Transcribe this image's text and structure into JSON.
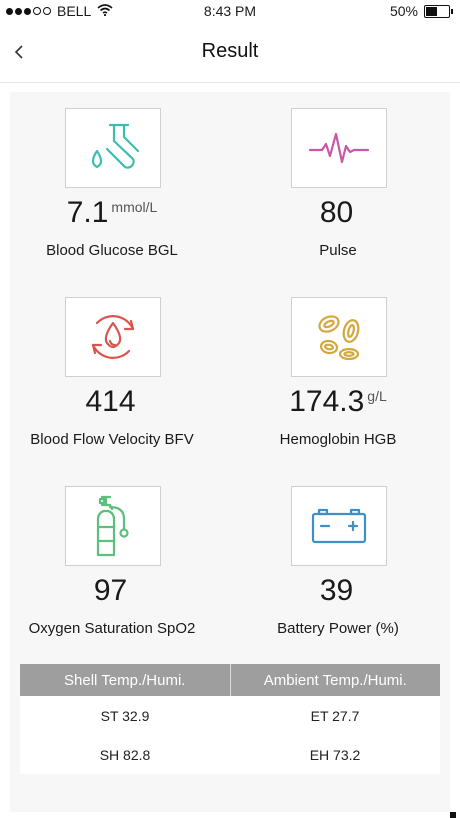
{
  "status_bar": {
    "carrier": "BELL",
    "time": "8:43 PM",
    "battery_percent": "50%",
    "battery_level": 0.5
  },
  "nav": {
    "title": "Result"
  },
  "metrics": [
    {
      "value": "7.1",
      "unit": "mmol/L",
      "label": "Blood Glucose BGL",
      "icon": "test-tube-drop-icon",
      "color": "#3dbcaf"
    },
    {
      "value": "80",
      "unit": "",
      "label": "Pulse",
      "icon": "pulse-wave-icon",
      "color": "#c857a8"
    },
    {
      "value": "414",
      "unit": "",
      "label": "Blood Flow Velocity BFV",
      "icon": "blood-drop-cycle-icon",
      "color": "#d9554d"
    },
    {
      "value": "174.3",
      "unit": "g/L",
      "label": "Hemoglobin HGB",
      "icon": "blood-cells-icon",
      "color": "#d4a83d"
    },
    {
      "value": "97",
      "unit": "",
      "label": "Oxygen Saturation SpO2",
      "icon": "oxygen-tank-icon",
      "color": "#5cbf7a"
    },
    {
      "value": "39",
      "unit": "",
      "label": "Battery Power (%)",
      "icon": "car-battery-icon",
      "color": "#3f8fc4"
    }
  ],
  "temps": {
    "headers": [
      "Shell Temp./Humi.",
      "Ambient Temp./Humi."
    ],
    "rows": [
      [
        "ST 32.9",
        "ET 27.7"
      ],
      [
        "SH 82.8",
        "EH 73.2"
      ]
    ]
  }
}
